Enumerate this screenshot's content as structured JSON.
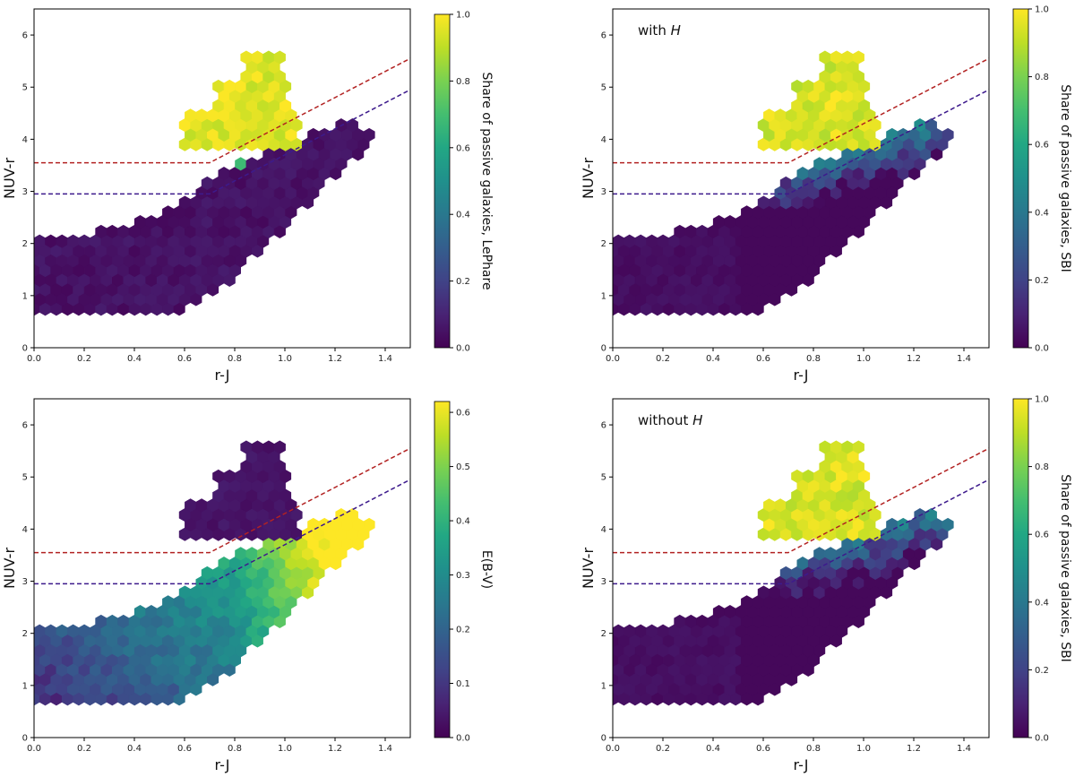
{
  "chart_data": [
    {
      "type": "heatmap",
      "xlabel": "r-J",
      "ylabel": "NUV-r",
      "xlim": [
        0,
        1.5
      ],
      "ylim": [
        0,
        6.5
      ],
      "xticks": [
        "0.0",
        "0.2",
        "0.4",
        "0.6",
        "0.8",
        "1.0",
        "1.2",
        "1.4"
      ],
      "yticks": [
        "0",
        "1",
        "2",
        "3",
        "4",
        "5",
        "6"
      ],
      "annotation": "",
      "annotation_italic": "",
      "colorbar": {
        "label": "Share of passive galaxies, LePhare",
        "range": [
          0,
          1
        ],
        "ticks": [
          "0.0",
          "0.2",
          "0.4",
          "0.6",
          "0.8",
          "1.0"
        ],
        "colormap": "viridis"
      },
      "mode": "share_binary",
      "selection_lines": [
        {
          "color": "#b22222",
          "points": [
            [
              0,
              3.55
            ],
            [
              0.7,
              3.55
            ],
            [
              1.5,
              5.55
            ]
          ]
        },
        {
          "color": "#3d1a8c",
          "points": [
            [
              0,
              2.95
            ],
            [
              0.7,
              2.95
            ],
            [
              1.5,
              4.95
            ]
          ]
        }
      ]
    },
    {
      "type": "heatmap",
      "xlabel": "r-J",
      "ylabel": "NUV-r",
      "xlim": [
        0,
        1.5
      ],
      "ylim": [
        0,
        6.5
      ],
      "xticks": [
        "0.0",
        "0.2",
        "0.4",
        "0.6",
        "0.8",
        "1.0",
        "1.2",
        "1.4"
      ],
      "yticks": [
        "0",
        "1",
        "2",
        "3",
        "4",
        "5",
        "6"
      ],
      "annotation": "with",
      "annotation_italic": "H",
      "colorbar": {
        "label": "Share of passive galaxies, SBI",
        "range": [
          0,
          1
        ],
        "ticks": [
          "0.0",
          "0.2",
          "0.4",
          "0.6",
          "0.8",
          "1.0"
        ],
        "colormap": "viridis"
      },
      "mode": "share_smooth",
      "selection_lines": [
        {
          "color": "#b22222",
          "points": [
            [
              0,
              3.55
            ],
            [
              0.7,
              3.55
            ],
            [
              1.5,
              5.55
            ]
          ]
        },
        {
          "color": "#3d1a8c",
          "points": [
            [
              0,
              2.95
            ],
            [
              0.7,
              2.95
            ],
            [
              1.5,
              4.95
            ]
          ]
        }
      ]
    },
    {
      "type": "heatmap",
      "xlabel": "r-J",
      "ylabel": "NUV-r",
      "xlim": [
        0,
        1.5
      ],
      "ylim": [
        0,
        6.5
      ],
      "xticks": [
        "0.0",
        "0.2",
        "0.4",
        "0.6",
        "0.8",
        "1.0",
        "1.2",
        "1.4"
      ],
      "yticks": [
        "0",
        "1",
        "2",
        "3",
        "4",
        "5",
        "6"
      ],
      "annotation": "",
      "annotation_italic": "",
      "colorbar": {
        "label": "E(B-V)",
        "range": [
          0,
          0.62
        ],
        "ticks": [
          "0.0",
          "0.1",
          "0.2",
          "0.3",
          "0.4",
          "0.5",
          "0.6"
        ],
        "colormap": "viridis"
      },
      "mode": "ebv",
      "selection_lines": [
        {
          "color": "#b22222",
          "points": [
            [
              0,
              3.55
            ],
            [
              0.7,
              3.55
            ],
            [
              1.5,
              5.55
            ]
          ]
        },
        {
          "color": "#3d1a8c",
          "points": [
            [
              0,
              2.95
            ],
            [
              0.7,
              2.95
            ],
            [
              1.5,
              4.95
            ]
          ]
        }
      ]
    },
    {
      "type": "heatmap",
      "xlabel": "r-J",
      "ylabel": "NUV-r",
      "xlim": [
        0,
        1.5
      ],
      "ylim": [
        0,
        6.5
      ],
      "xticks": [
        "0.0",
        "0.2",
        "0.4",
        "0.6",
        "0.8",
        "1.0",
        "1.2",
        "1.4"
      ],
      "yticks": [
        "0",
        "1",
        "2",
        "3",
        "4",
        "5",
        "6"
      ],
      "annotation": "without",
      "annotation_italic": "H",
      "colorbar": {
        "label": "Share of passive galaxies, SBI",
        "range": [
          0,
          1
        ],
        "ticks": [
          "0.0",
          "0.2",
          "0.4",
          "0.6",
          "0.8",
          "1.0"
        ],
        "colormap": "viridis"
      },
      "mode": "share_smooth",
      "selection_lines": [
        {
          "color": "#b22222",
          "points": [
            [
              0,
              3.55
            ],
            [
              0.7,
              3.55
            ],
            [
              1.5,
              5.55
            ]
          ]
        },
        {
          "color": "#3d1a8c",
          "points": [
            [
              0,
              2.95
            ],
            [
              0.7,
              2.95
            ],
            [
              1.5,
              4.95
            ]
          ]
        }
      ]
    }
  ]
}
